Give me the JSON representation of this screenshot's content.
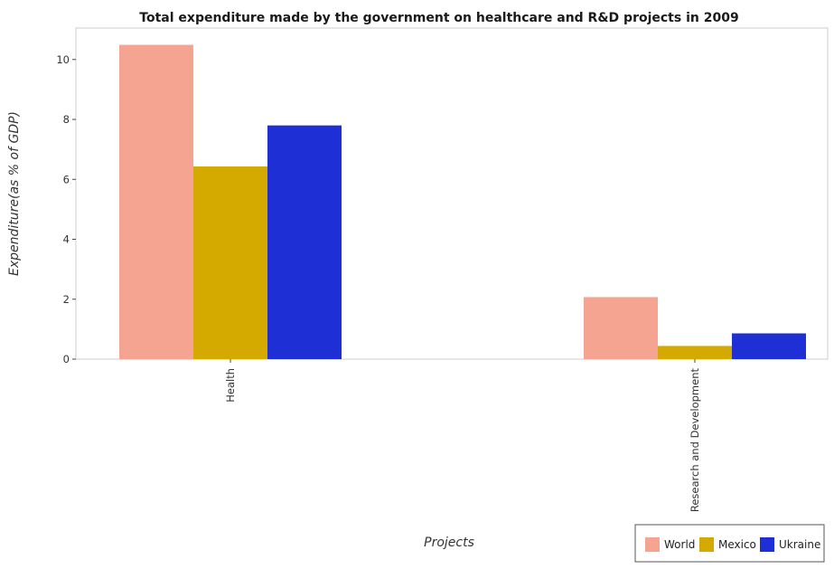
{
  "chart_data": {
    "type": "bar",
    "title": "Total expenditure made by the government on healthcare and R&D projects in 2009",
    "xlabel": "Projects",
    "ylabel": "Expenditure(as % of GDP)",
    "categories": [
      "Health",
      "Research and Development"
    ],
    "series": [
      {
        "name": "World",
        "color": "#f4a491",
        "values": [
          10.49,
          2.07
        ]
      },
      {
        "name": "Mexico",
        "color": "#d4aa00",
        "values": [
          6.43,
          0.44
        ]
      },
      {
        "name": "Ukraine",
        "color": "#1f2fd6",
        "values": [
          7.8,
          0.86
        ]
      }
    ],
    "yticks": [
      0,
      2,
      4,
      6,
      8,
      10
    ],
    "ylim": [
      0,
      11.05
    ],
    "grid": false,
    "legend_position": "bottom-right"
  }
}
